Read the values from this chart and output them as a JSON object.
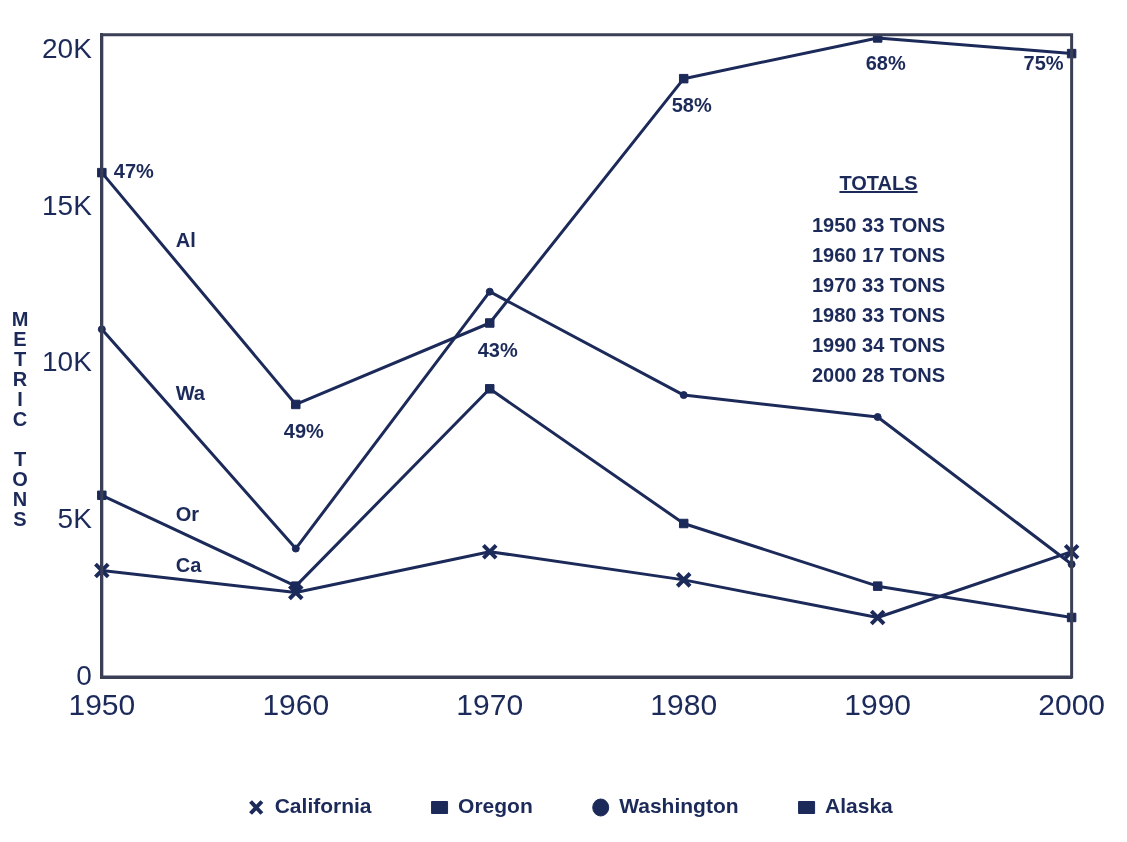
{
  "chart_data": {
    "type": "line",
    "ylabel": "METRIC TONS",
    "categories": [
      "1950",
      "1960",
      "1970",
      "1980",
      "1990",
      "2000"
    ],
    "series": [
      {
        "name": "California",
        "color": "#1c2a5a",
        "marker": "cross",
        "values": [
          3400,
          2700,
          4000,
          3100,
          1900,
          4000
        ]
      },
      {
        "name": "Oregon",
        "color": "#1c2a5a",
        "marker": "square",
        "values": [
          5800,
          2900,
          9200,
          4900,
          2900,
          1900
        ]
      },
      {
        "name": "Washington",
        "color": "#1c2a5a",
        "marker": "circle",
        "values": [
          11100,
          4100,
          12300,
          9000,
          8300,
          3600
        ]
      },
      {
        "name": "Alaska",
        "color": "#1c2a5a",
        "marker": "square",
        "values": [
          16100,
          8700,
          11300,
          19100,
          20400,
          19900
        ]
      }
    ],
    "ylim": [
      0,
      20500
    ],
    "yticks": [
      0,
      {
        "value": 5000,
        "label": "5K"
      },
      {
        "value": 10000,
        "label": "10K"
      },
      {
        "value": 15000,
        "label": "15K"
      },
      {
        "value": 20000,
        "label": "20K"
      }
    ],
    "grid": false,
    "legend": "bottom",
    "line_style": "solid",
    "annotations": [
      {
        "text": "47%",
        "x": "1950",
        "y": 16100
      },
      {
        "text": "49%",
        "x": "1960",
        "y": 8700
      },
      {
        "text": "43%",
        "x": "1970",
        "y": 11300
      },
      {
        "text": "58%",
        "x": "1980",
        "y": 19100
      },
      {
        "text": "68%",
        "x": "1990",
        "y": 20400
      },
      {
        "text": "75%",
        "x": "2000",
        "y": 19900
      },
      "Ca",
      "Or",
      "Wa",
      "Al",
      "TOTALS",
      "1950 33 TONS",
      "1960 17 TONS",
      "1970 33 TONS",
      "1980 33 TONS",
      "1990 34 TONS",
      "2000 28 TONS"
    ]
  }
}
